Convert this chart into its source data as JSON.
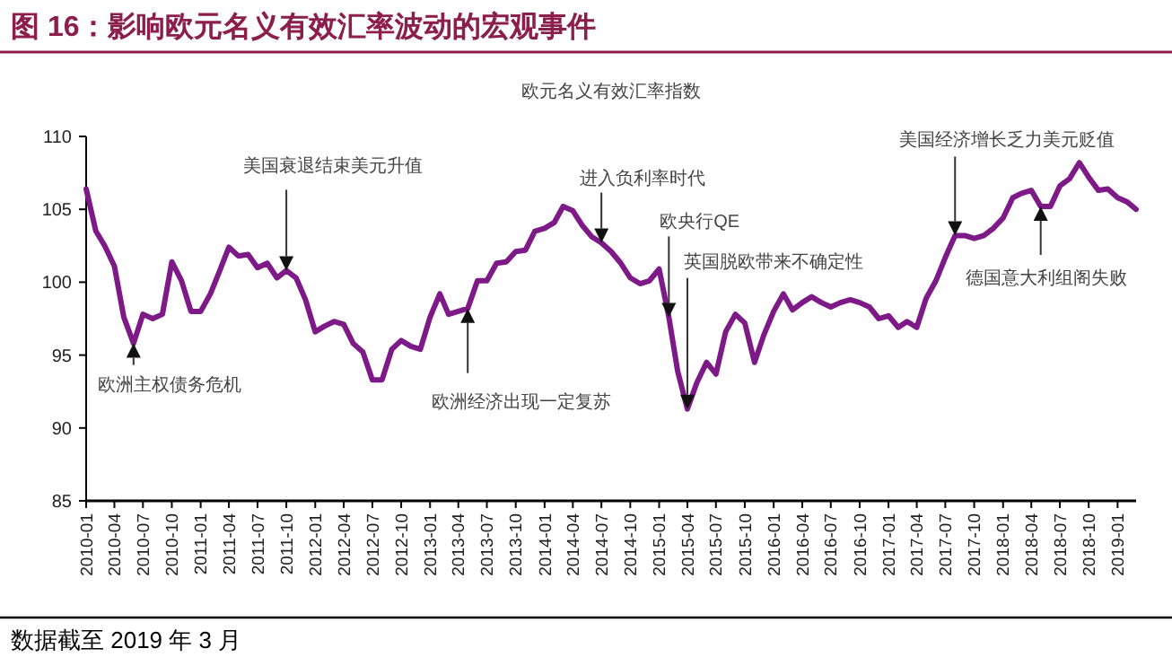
{
  "chart_data": {
    "type": "line",
    "title": "图 16：影响欧元名义有效汇率波动的宏观事件",
    "subtitle": "欧元名义有效汇率指数",
    "x": [
      "2010-01",
      "2010-02",
      "2010-03",
      "2010-04",
      "2010-05",
      "2010-06",
      "2010-07",
      "2010-08",
      "2010-09",
      "2010-10",
      "2010-11",
      "2010-12",
      "2011-01",
      "2011-02",
      "2011-03",
      "2011-04",
      "2011-05",
      "2011-06",
      "2011-07",
      "2011-08",
      "2011-09",
      "2011-10",
      "2011-11",
      "2011-12",
      "2012-01",
      "2012-02",
      "2012-03",
      "2012-04",
      "2012-05",
      "2012-06",
      "2012-07",
      "2012-08",
      "2012-09",
      "2012-10",
      "2012-11",
      "2012-12",
      "2013-01",
      "2013-02",
      "2013-03",
      "2013-04",
      "2013-05",
      "2013-06",
      "2013-07",
      "2013-08",
      "2013-09",
      "2013-10",
      "2013-11",
      "2013-12",
      "2014-01",
      "2014-02",
      "2014-03",
      "2014-04",
      "2014-05",
      "2014-06",
      "2014-07",
      "2014-08",
      "2014-09",
      "2014-10",
      "2014-11",
      "2014-12",
      "2015-01",
      "2015-02",
      "2015-03",
      "2015-04",
      "2015-05",
      "2015-06",
      "2015-07",
      "2015-08",
      "2015-09",
      "2015-10",
      "2015-11",
      "2015-12",
      "2016-01",
      "2016-02",
      "2016-03",
      "2016-04",
      "2016-05",
      "2016-06",
      "2016-07",
      "2016-08",
      "2016-09",
      "2016-10",
      "2016-11",
      "2016-12",
      "2017-01",
      "2017-02",
      "2017-03",
      "2017-04",
      "2017-05",
      "2017-06",
      "2017-07",
      "2017-08",
      "2017-09",
      "2017-10",
      "2017-11",
      "2017-12",
      "2018-01",
      "2018-02",
      "2018-03",
      "2018-04",
      "2018-05",
      "2018-06",
      "2018-07",
      "2018-08",
      "2018-09",
      "2018-10",
      "2018-11",
      "2018-12",
      "2019-01",
      "2019-02",
      "2019-03"
    ],
    "series": [
      {
        "color": "#7d1a87",
        "values": [
          106.4,
          103.5,
          102.5,
          101.1,
          97.6,
          95.8,
          97.8,
          97.5,
          97.8,
          101.4,
          100.1,
          98.0,
          98.0,
          99.2,
          100.7,
          102.4,
          101.8,
          101.9,
          101.0,
          101.3,
          100.3,
          100.8,
          100.3,
          98.8,
          96.6,
          97.0,
          97.3,
          97.1,
          95.8,
          95.2,
          93.3,
          93.3,
          95.4,
          96.0,
          95.6,
          95.4,
          97.6,
          99.2,
          97.8,
          98.0,
          98.2,
          100.1,
          100.1,
          101.3,
          101.4,
          102.1,
          102.2,
          103.5,
          103.7,
          104.1,
          105.2,
          104.9,
          103.9,
          103.1,
          102.7,
          102.1,
          101.3,
          100.3,
          99.9,
          100.1,
          100.9,
          97.6,
          93.9,
          91.3,
          93.1,
          94.5,
          93.7,
          96.6,
          97.8,
          97.2,
          94.5,
          96.4,
          98.0,
          99.2,
          98.1,
          98.6,
          99.0,
          98.6,
          98.3,
          98.6,
          98.8,
          98.6,
          98.3,
          97.5,
          97.7,
          96.9,
          97.3,
          96.9,
          98.9,
          100.1,
          101.7,
          103.2,
          103.2,
          103.0,
          103.2,
          103.7,
          104.4,
          105.8,
          106.1,
          106.3,
          105.2,
          105.2,
          106.6,
          107.1,
          108.2,
          107.2,
          106.3,
          106.4,
          105.8,
          105.5,
          105.0
        ]
      }
    ],
    "xlim": [
      "2010-01",
      "2019-03"
    ],
    "xticks": [
      "2010-01",
      "2010-04",
      "2010-07",
      "2010-10",
      "2011-01",
      "2011-04",
      "2011-07",
      "2011-10",
      "2012-01",
      "2012-04",
      "2012-07",
      "2012-10",
      "2013-01",
      "2013-04",
      "2013-07",
      "2013-10",
      "2014-01",
      "2014-04",
      "2014-07",
      "2014-10",
      "2015-01",
      "2015-04",
      "2015-07",
      "2015-10",
      "2016-01",
      "2016-04",
      "2016-07",
      "2016-10",
      "2017-01",
      "2017-04",
      "2017-07",
      "2017-10",
      "2018-01",
      "2018-04",
      "2018-07",
      "2018-10",
      "2019-01"
    ],
    "ylim": [
      85,
      110
    ],
    "yticks": [
      85,
      90,
      95,
      100,
      105,
      110
    ],
    "grid": false,
    "legend": false,
    "marker": "none",
    "line_style": "solid",
    "annotations": [
      {
        "text": "欧洲主权债务危机",
        "x": "2010-06",
        "y": 95.8
      },
      {
        "text": "美国衰退结束美元升值",
        "x": "2011-10",
        "y": 100.8
      },
      {
        "text": "欧洲经济出现一定复苏",
        "x": "2013-05",
        "y": 98.2
      },
      {
        "text": "进入负利率时代",
        "x": "2014-07",
        "y": 102.7
      },
      {
        "text": "欧央行QE",
        "x": "2015-02",
        "y": 97.6
      },
      {
        "text": "英国脱欧带来不确定性",
        "x": "2015-04",
        "y": 91.3
      },
      {
        "text": "美国经济增长乏力美元贬值",
        "x": "2017-08",
        "y": 103.2
      },
      {
        "text": "德国意大利组阁失败",
        "x": "2018-05",
        "y": 105.2
      },
      "数据截至 2019 年 3 月"
    ]
  }
}
